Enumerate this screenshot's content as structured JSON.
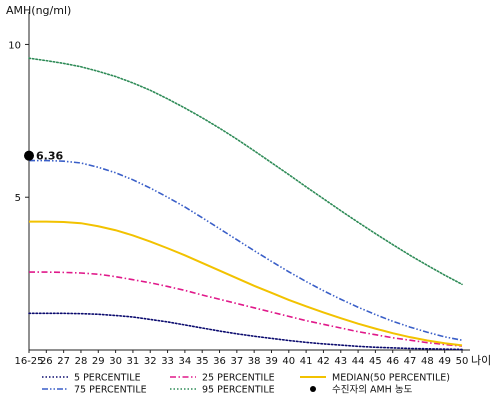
{
  "chart_data": {
    "type": "line",
    "ylabel": "AMH(ng/ml)",
    "xlabel": "나이",
    "x": [
      "16-25",
      "26",
      "27",
      "28",
      "29",
      "30",
      "31",
      "32",
      "33",
      "34",
      "35",
      "36",
      "37",
      "38",
      "39",
      "40",
      "41",
      "42",
      "43",
      "44",
      "45",
      "46",
      "47",
      "48",
      "49",
      "50"
    ],
    "y_ticks": [
      5,
      10
    ],
    "ylim": [
      0,
      10.8
    ],
    "grid": false,
    "legend_position": "bottom",
    "series": [
      {
        "name": "5 PERCENTILE",
        "color": "#0a0a6e",
        "dash": "dotted",
        "values": [
          1.2,
          1.2,
          1.2,
          1.19,
          1.17,
          1.13,
          1.08,
          1.0,
          0.92,
          0.82,
          0.72,
          0.62,
          0.53,
          0.45,
          0.38,
          0.31,
          0.25,
          0.2,
          0.16,
          0.12,
          0.09,
          0.07,
          0.05,
          0.04,
          0.03,
          0.02
        ]
      },
      {
        "name": "25 PERCENTILE",
        "color": "#e0198a",
        "dash": "dashdot",
        "values": [
          2.55,
          2.55,
          2.54,
          2.52,
          2.48,
          2.4,
          2.3,
          2.2,
          2.08,
          1.95,
          1.8,
          1.66,
          1.52,
          1.38,
          1.24,
          1.1,
          0.96,
          0.84,
          0.72,
          0.6,
          0.5,
          0.4,
          0.32,
          0.24,
          0.18,
          0.13
        ]
      },
      {
        "name": "MEDIAN(50 PERCENTILE)",
        "color": "#f2c200",
        "dash": "solid",
        "values": [
          4.2,
          4.2,
          4.19,
          4.15,
          4.05,
          3.92,
          3.75,
          3.55,
          3.33,
          3.1,
          2.85,
          2.6,
          2.35,
          2.1,
          1.87,
          1.64,
          1.43,
          1.23,
          1.04,
          0.86,
          0.7,
          0.55,
          0.42,
          0.31,
          0.22,
          0.15
        ]
      },
      {
        "name": "75 PERCENTILE",
        "color": "#3a5fc8",
        "dash": "dashdotdot",
        "values": [
          6.2,
          6.2,
          6.18,
          6.12,
          5.98,
          5.8,
          5.57,
          5.3,
          5.0,
          4.68,
          4.33,
          3.97,
          3.61,
          3.25,
          2.9,
          2.56,
          2.24,
          1.94,
          1.66,
          1.4,
          1.16,
          0.94,
          0.75,
          0.58,
          0.43,
          0.32
        ]
      },
      {
        "name": "95 PERCENTILE",
        "color": "#2e8b57",
        "dash": "dotted",
        "values": [
          9.55,
          9.47,
          9.38,
          9.27,
          9.12,
          8.95,
          8.74,
          8.5,
          8.22,
          7.92,
          7.6,
          7.26,
          6.9,
          6.52,
          6.13,
          5.74,
          5.34,
          4.95,
          4.56,
          4.18,
          3.81,
          3.45,
          3.1,
          2.77,
          2.45,
          2.15
        ]
      }
    ],
    "marker": {
      "name": "수진자의 AMH 농도",
      "x_index": 0,
      "y": 6.36,
      "label": "6.36",
      "color": "#000000"
    }
  }
}
